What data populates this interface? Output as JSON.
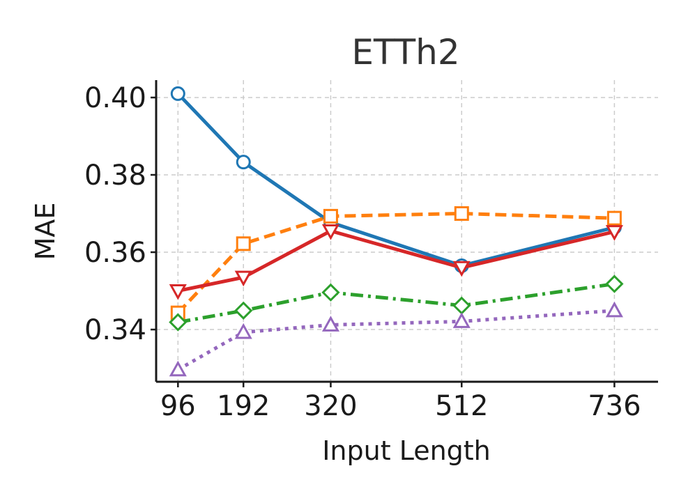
{
  "chart_data": {
    "type": "line",
    "title": "ETTh2",
    "xlabel": "Input Length",
    "ylabel": "MAE",
    "x": [
      96,
      192,
      320,
      512,
      736
    ],
    "x_tick_labels": [
      "96",
      "192",
      "320",
      "512",
      "736"
    ],
    "y_ticks": [
      0.34,
      0.36,
      0.38,
      0.4
    ],
    "y_tick_labels": [
      "0.34",
      "0.36",
      "0.38",
      "0.40"
    ],
    "xlim": [
      64,
      800
    ],
    "ylim": [
      0.3265,
      0.4045
    ],
    "grid": true,
    "series": [
      {
        "values": [
          0.401,
          0.3833,
          0.3677,
          0.3565,
          0.3664
        ],
        "color": "#1f77b4",
        "line_style": "solid",
        "marker": "circle"
      },
      {
        "values": [
          0.3443,
          0.3622,
          0.3693,
          0.37,
          0.3688
        ],
        "color": "#ff7f0e",
        "line_style": "dashed",
        "marker": "square"
      },
      {
        "values": [
          0.35,
          0.3535,
          0.3655,
          0.356,
          0.3653
        ],
        "color": "#d62728",
        "line_style": "solid",
        "marker": "triangle-down"
      },
      {
        "values": [
          0.3419,
          0.3449,
          0.3496,
          0.3462,
          0.3518
        ],
        "color": "#2ca02c",
        "line_style": "dash-dot",
        "marker": "diamond"
      },
      {
        "values": [
          0.3296,
          0.3393,
          0.3412,
          0.3421,
          0.3449
        ],
        "color": "#9467bd",
        "line_style": "dotted",
        "marker": "triangle-up"
      }
    ]
  }
}
